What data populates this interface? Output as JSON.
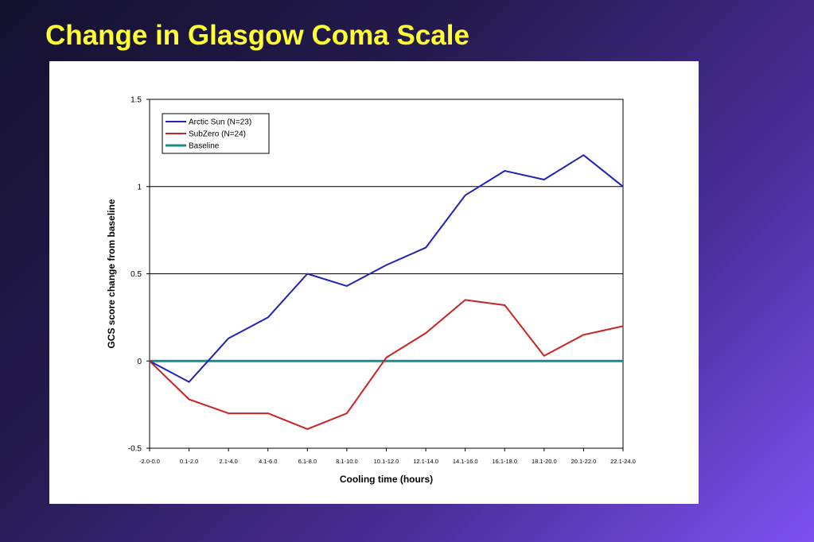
{
  "slide": {
    "title": "Change in Glasgow Coma Scale"
  },
  "chart_data": {
    "type": "line",
    "title": "",
    "xlabel": "Cooling time (hours)",
    "ylabel": "GCS score change from baseline",
    "ylim": [
      -0.5,
      1.5
    ],
    "yticks": [
      -0.5,
      0,
      0.5,
      1,
      1.5
    ],
    "ytick_labels": [
      "-0.5",
      "0",
      "0.5",
      "1",
      "1.5"
    ],
    "grid": "horizontal at 0.5 and 1",
    "legend_position": "top-left",
    "categories": [
      "-2.0-0.0",
      "0.1-2.0",
      "2.1-4.0",
      "4.1-6.0",
      "6.1-8.0",
      "8.1-10.0",
      "10.1-12.0",
      "12.1-14.0",
      "14.1-16.0",
      "16.1-18.0",
      "18.1-20.0",
      "20.1-22.0",
      "22.1-24.0"
    ],
    "series": [
      {
        "name": "Arctic Sun (N=23)",
        "color": "#1f24b4",
        "values": [
          0,
          -0.12,
          0.13,
          0.25,
          0.5,
          0.43,
          0.55,
          0.65,
          0.95,
          1.09,
          1.04,
          1.18,
          1.0
        ]
      },
      {
        "name": "SubZero (N=24)",
        "color": "#cc2222",
        "values": [
          0,
          -0.22,
          -0.3,
          -0.3,
          -0.39,
          -0.3,
          0.02,
          0.16,
          0.35,
          0.32,
          0.03,
          0.15,
          0.2
        ]
      },
      {
        "name": "Baseline",
        "color": "#1a8c8c",
        "values": [
          0,
          0,
          0,
          0,
          0,
          0,
          0,
          0,
          0,
          0,
          0,
          0,
          0
        ]
      }
    ]
  }
}
